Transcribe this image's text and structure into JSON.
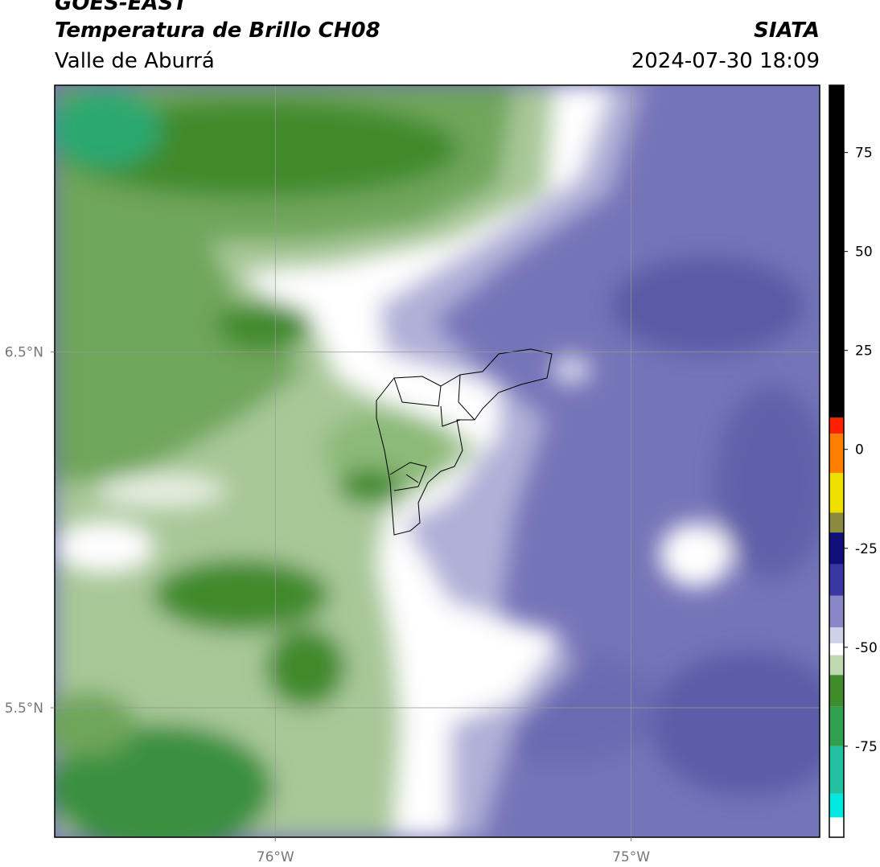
{
  "header": {
    "title": "GOES-EAST",
    "subtitle": "Temperatura de Brillo CH08",
    "region": "Valle de Aburrá",
    "source": "SIATA",
    "timestamp": "2024-07-30 18:09"
  },
  "map": {
    "xlim": [
      -76.62,
      -74.47
    ],
    "ylim": [
      5.136,
      7.25
    ],
    "xticks": [
      {
        "value": -76,
        "label": "76°W"
      },
      {
        "value": -75,
        "label": "75°W"
      }
    ],
    "yticks": [
      {
        "value": 6.5,
        "label": "6.5°N"
      },
      {
        "value": 5.5,
        "label": "5.5°N"
      }
    ],
    "grid": true
  },
  "colorbar": {
    "lim": [
      -98,
      92
    ],
    "ticks": [
      75,
      50,
      25,
      0,
      -25,
      -50,
      -75
    ],
    "segments": [
      {
        "from": 8,
        "to": 92,
        "color": "#000000"
      },
      {
        "from": 4,
        "to": 8,
        "color": "#ff2000"
      },
      {
        "from": -6,
        "to": 4,
        "color": "#ff8000"
      },
      {
        "from": -16,
        "to": -6,
        "color": "#f0e000"
      },
      {
        "from": -21,
        "to": -16,
        "color": "#8a8a40"
      },
      {
        "from": -29,
        "to": -21,
        "color": "#101078"
      },
      {
        "from": -37,
        "to": -29,
        "color": "#3838a0"
      },
      {
        "from": -45,
        "to": -37,
        "color": "#8888c8"
      },
      {
        "from": -49,
        "to": -45,
        "color": "#d0d0e8"
      },
      {
        "from": -52,
        "to": -49,
        "color": "#ffffff"
      },
      {
        "from": -57,
        "to": -52,
        "color": "#c0d8b0"
      },
      {
        "from": -65,
        "to": -57,
        "color": "#408c2a"
      },
      {
        "from": -75,
        "to": -65,
        "color": "#30a050"
      },
      {
        "from": -87,
        "to": -75,
        "color": "#20c0a0"
      },
      {
        "from": -93,
        "to": -87,
        "color": "#00e8e0"
      },
      {
        "from": -98,
        "to": -93,
        "color": "#ffffff"
      }
    ]
  }
}
